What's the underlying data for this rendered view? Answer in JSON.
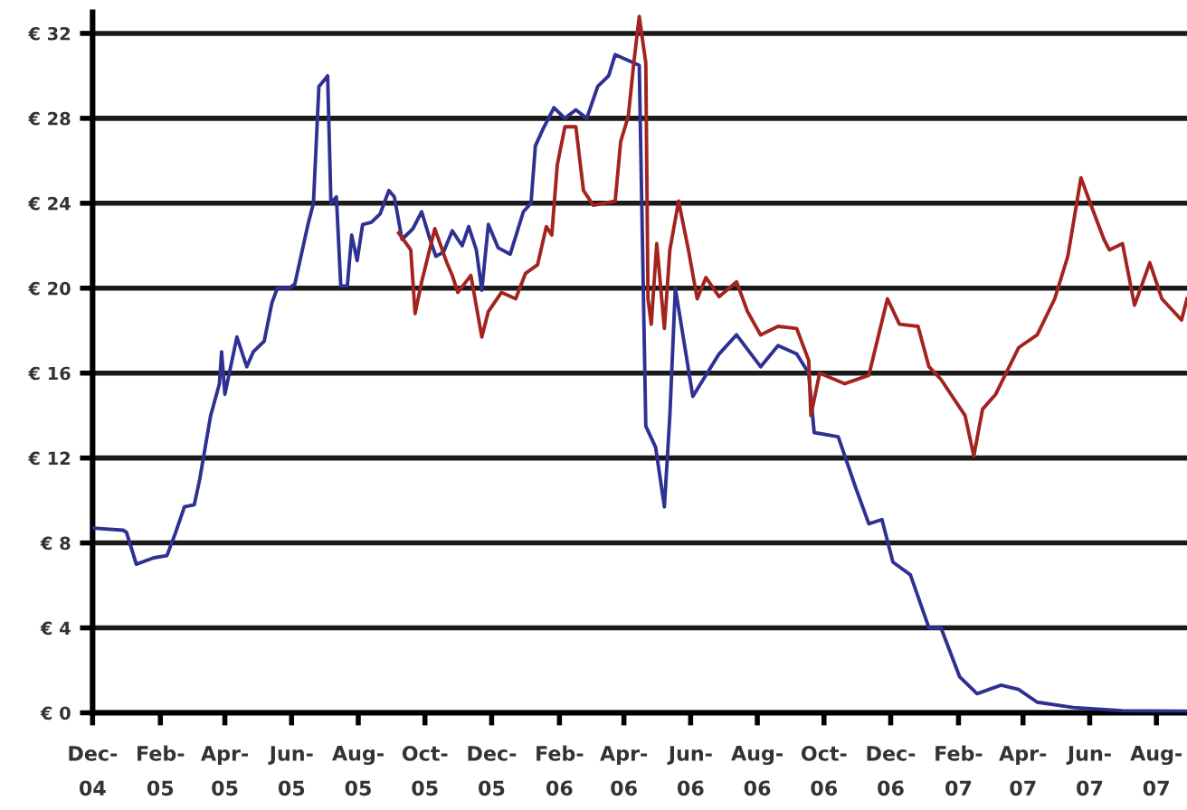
{
  "chart_data": {
    "type": "line",
    "ylim": [
      0,
      33
    ],
    "yticks": [
      {
        "value": 0,
        "label": "€ 0"
      },
      {
        "value": 4,
        "label": "€ 4"
      },
      {
        "value": 8,
        "label": "€ 8"
      },
      {
        "value": 12,
        "label": "€ 12"
      },
      {
        "value": 16,
        "label": "€ 16"
      },
      {
        "value": 20,
        "label": "€ 20"
      },
      {
        "value": 24,
        "label": "€ 24"
      },
      {
        "value": 28,
        "label": "€ 28"
      },
      {
        "value": 32,
        "label": "€ 32"
      }
    ],
    "xlim": [
      "2004-12-01",
      "2007-08-29"
    ],
    "xticks": [
      {
        "value": "2004-12-01",
        "label": "Dec-\n04"
      },
      {
        "value": "2005-02-01",
        "label": "Feb-\n05"
      },
      {
        "value": "2005-04-01",
        "label": "Apr-\n05"
      },
      {
        "value": "2005-06-01",
        "label": "Jun-\n05"
      },
      {
        "value": "2005-08-01",
        "label": "Aug-\n05"
      },
      {
        "value": "2005-10-01",
        "label": "Oct-\n05"
      },
      {
        "value": "2005-12-01",
        "label": "Dec-\n05"
      },
      {
        "value": "2006-02-01",
        "label": "Feb-\n06"
      },
      {
        "value": "2006-04-01",
        "label": "Apr-\n06"
      },
      {
        "value": "2006-06-01",
        "label": "Jun-\n06"
      },
      {
        "value": "2006-08-01",
        "label": "Aug-\n06"
      },
      {
        "value": "2006-10-01",
        "label": "Oct-\n06"
      },
      {
        "value": "2006-12-01",
        "label": "Dec-\n06"
      },
      {
        "value": "2007-02-01",
        "label": "Feb-\n07"
      },
      {
        "value": "2007-04-01",
        "label": "Apr-\n07"
      },
      {
        "value": "2007-06-01",
        "label": "Jun-\n07"
      },
      {
        "value": "2007-08-01",
        "label": "Aug-\n07"
      }
    ],
    "grid": "y",
    "marker": "none",
    "line_style": "solid",
    "series": [
      {
        "color": "#2e3192",
        "x": [
          "2004-12-01",
          "2004-12-29",
          "2005-01-01",
          "2005-01-10",
          "2005-01-26",
          "2005-02-07",
          "2005-02-15",
          "2005-02-23",
          "2005-03-04",
          "2005-03-09",
          "2005-03-14",
          "2005-03-19",
          "2005-03-27",
          "2005-03-29",
          "2005-04-01",
          "2005-04-12",
          "2005-04-21",
          "2005-04-27",
          "2005-05-07",
          "2005-05-14",
          "2005-05-19",
          "2005-05-30",
          "2005-06-04",
          "2005-06-16",
          "2005-06-21",
          "2005-06-26",
          "2005-07-04",
          "2005-07-07",
          "2005-07-12",
          "2005-07-16",
          "2005-07-22",
          "2005-07-26",
          "2005-07-31",
          "2005-08-05",
          "2005-08-13",
          "2005-08-21",
          "2005-08-29",
          "2005-09-03",
          "2005-09-10",
          "2005-09-20",
          "2005-09-28",
          "2005-10-05",
          "2005-10-11",
          "2005-10-18",
          "2005-10-26",
          "2005-11-04",
          "2005-11-10",
          "2005-11-17",
          "2005-11-22",
          "2005-11-28",
          "2005-12-07",
          "2005-12-18",
          "2005-12-30",
          "2006-01-06",
          "2006-01-10",
          "2006-01-17",
          "2006-01-27",
          "2006-02-06",
          "2006-02-16",
          "2006-02-26",
          "2006-03-08",
          "2006-03-18",
          "2006-03-24",
          "2006-04-15",
          "2006-04-21",
          "2006-04-30",
          "2006-05-08",
          "2006-05-13",
          "2006-05-18",
          "2006-06-03",
          "2006-06-27",
          "2006-07-13",
          "2006-08-04",
          "2006-08-20",
          "2006-09-06",
          "2006-09-17",
          "2006-09-22",
          "2006-10-14",
          "2006-10-30",
          "2006-11-11",
          "2006-11-23",
          "2006-12-03",
          "2006-12-19",
          "2007-01-05",
          "2007-01-16",
          "2007-02-02",
          "2007-02-18",
          "2007-03-12",
          "2007-03-28",
          "2007-04-14",
          "2007-05-17",
          "2007-07-01",
          "2007-08-29"
        ],
        "values": [
          8.7,
          8.6,
          8.5,
          7.0,
          7.3,
          7.4,
          8.5,
          9.7,
          9.8,
          11.0,
          12.5,
          14.0,
          15.5,
          17.0,
          15.0,
          17.7,
          16.3,
          17.0,
          17.5,
          19.3,
          20.0,
          20.0,
          20.2,
          23.0,
          24.0,
          29.5,
          30.0,
          24.0,
          24.3,
          20.1,
          20.1,
          22.5,
          21.3,
          23.0,
          23.1,
          23.5,
          24.6,
          24.3,
          22.3,
          22.8,
          23.6,
          22.4,
          21.5,
          21.7,
          22.7,
          22.0,
          22.9,
          21.8,
          19.9,
          23.0,
          21.9,
          21.6,
          23.6,
          24.0,
          26.7,
          27.5,
          28.5,
          28.0,
          28.4,
          28.0,
          29.5,
          30.0,
          31.0,
          30.5,
          13.5,
          12.5,
          9.7,
          14.0,
          20.0,
          14.9,
          16.9,
          17.8,
          16.3,
          17.3,
          16.9,
          16.0,
          13.2,
          13.0,
          10.6,
          8.9,
          9.1,
          7.1,
          6.5,
          4.0,
          4.0,
          1.7,
          0.9,
          1.3,
          1.1,
          0.5,
          0.25,
          0.1,
          0.08
        ]
      },
      {
        "color": "#a3231f",
        "x": [
          "2005-09-07",
          "2005-09-18",
          "2005-09-22",
          "2005-09-28",
          "2005-10-10",
          "2005-10-21",
          "2005-10-26",
          "2005-10-31",
          "2005-11-12",
          "2005-11-22",
          "2005-11-28",
          "2005-12-10",
          "2005-12-23",
          "2006-01-01",
          "2006-01-12",
          "2006-01-20",
          "2006-01-25",
          "2006-01-30",
          "2006-02-06",
          "2006-02-16",
          "2006-02-23",
          "2006-03-04",
          "2006-03-24",
          "2006-03-29",
          "2006-04-05",
          "2006-04-10",
          "2006-04-15",
          "2006-04-21",
          "2006-04-23",
          "2006-04-26",
          "2006-05-01",
          "2006-05-08",
          "2006-05-13",
          "2006-05-21",
          "2006-05-30",
          "2006-06-07",
          "2006-06-15",
          "2006-06-27",
          "2006-07-13",
          "2006-07-23",
          "2006-08-04",
          "2006-08-20",
          "2006-09-06",
          "2006-09-17",
          "2006-09-19",
          "2006-09-27",
          "2006-10-20",
          "2006-11-11",
          "2006-11-28",
          "2006-12-09",
          "2006-12-26",
          "2007-01-05",
          "2007-01-16",
          "2007-02-07",
          "2007-02-15",
          "2007-02-23",
          "2007-03-07",
          "2007-03-28",
          "2007-04-14",
          "2007-04-30",
          "2007-05-12",
          "2007-05-24",
          "2007-06-03",
          "2007-06-14",
          "2007-06-19",
          "2007-07-01",
          "2007-07-12",
          "2007-07-26",
          "2007-08-06",
          "2007-08-24",
          "2007-08-29"
        ],
        "values": [
          22.6,
          21.8,
          18.8,
          20.3,
          22.8,
          21.2,
          20.6,
          19.8,
          20.6,
          17.7,
          18.9,
          19.8,
          19.5,
          20.7,
          21.1,
          22.9,
          22.5,
          25.8,
          27.6,
          27.6,
          24.6,
          23.9,
          24.1,
          26.9,
          28.1,
          30.6,
          32.8,
          30.6,
          19.5,
          18.3,
          22.1,
          18.1,
          21.8,
          24.1,
          21.8,
          19.5,
          20.5,
          19.6,
          20.3,
          18.9,
          17.8,
          18.2,
          18.1,
          16.6,
          14.0,
          16.0,
          15.5,
          15.9,
          19.5,
          18.3,
          18.2,
          16.3,
          15.7,
          14.0,
          12.1,
          14.3,
          15.0,
          17.2,
          17.8,
          19.5,
          21.5,
          25.2,
          23.8,
          22.3,
          21.8,
          22.1,
          19.2,
          21.2,
          19.5,
          18.5,
          19.5
        ]
      }
    ]
  }
}
